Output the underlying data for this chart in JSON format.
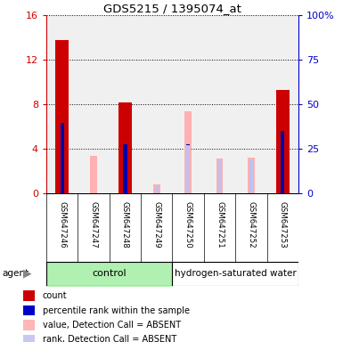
{
  "title": "GDS5215 / 1395074_at",
  "samples": [
    "GSM647246",
    "GSM647247",
    "GSM647248",
    "GSM647249",
    "GSM647250",
    "GSM647251",
    "GSM647252",
    "GSM647253"
  ],
  "red_bars": [
    13.8,
    0,
    8.2,
    0,
    0,
    0,
    0,
    9.3
  ],
  "blue_bars": [
    6.3,
    0,
    4.4,
    0,
    4.4,
    0,
    0,
    5.6
  ],
  "pink_bars": [
    0,
    3.4,
    0,
    0.8,
    7.4,
    3.1,
    3.2,
    0
  ],
  "lavender_bars": [
    0,
    0,
    0,
    0.6,
    4.3,
    3.0,
    3.0,
    0
  ],
  "ylim_left": [
    0,
    16
  ],
  "ylim_right": [
    0,
    100
  ],
  "yticks_left": [
    0,
    4,
    8,
    12,
    16
  ],
  "yticks_right": [
    0,
    25,
    50,
    75,
    100
  ],
  "ytick_labels_right": [
    "0",
    "25",
    "50",
    "75",
    "100%"
  ],
  "left_axis_color": "#cc0000",
  "right_axis_color": "#0000cc",
  "legend_items": [
    {
      "label": "count",
      "color": "#cc0000"
    },
    {
      "label": "percentile rank within the sample",
      "color": "#0000cc"
    },
    {
      "label": "value, Detection Call = ABSENT",
      "color": "#ffb6b6"
    },
    {
      "label": "rank, Detection Call = ABSENT",
      "color": "#c8c8f0"
    }
  ],
  "plot_bg_color": "#f0f0f0",
  "sample_label_bg": "#d0d0d0",
  "group_bg": "#b0f0b0",
  "control_label": "control",
  "hw_label": "hydrogen-saturated water",
  "agent_label": "agent"
}
